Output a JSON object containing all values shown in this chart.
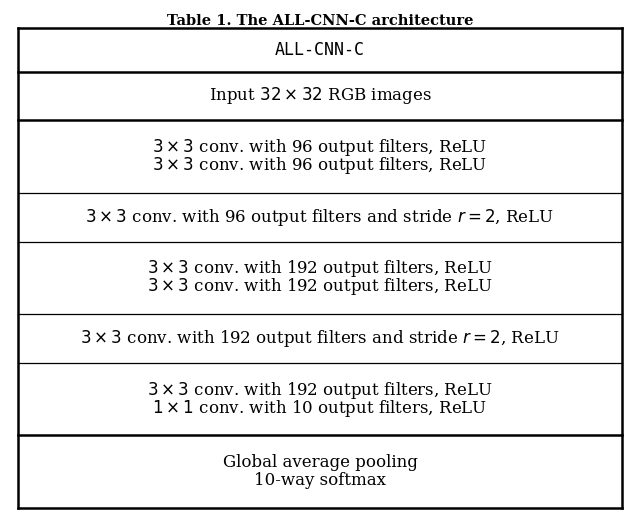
{
  "title": "Table 1. The ALL-CNN-C architecture",
  "title_fontsize": 10.5,
  "header": "ALL-CNN-C",
  "header_fontsize": 12,
  "rows": [
    {
      "lines": [
        "Input $32 \\times 32$ RGB images"
      ],
      "thick_top": true,
      "fontsize": 12
    },
    {
      "lines": [
        "$3 \\times 3$ conv. with 96 output filters, ReLU",
        "$3 \\times 3$ conv. with 96 output filters, ReLU"
      ],
      "thick_top": true,
      "fontsize": 12
    },
    {
      "lines": [
        "$3 \\times 3$ conv. with 96 output filters and stride $r = 2$, ReLU"
      ],
      "thick_top": false,
      "fontsize": 12
    },
    {
      "lines": [
        "$3 \\times 3$ conv. with 192 output filters, ReLU",
        "$3 \\times 3$ conv. with 192 output filters, ReLU"
      ],
      "thick_top": false,
      "fontsize": 12
    },
    {
      "lines": [
        "$3 \\times 3$ conv. with 192 output filters and stride $r = 2$, ReLU"
      ],
      "thick_top": false,
      "fontsize": 12
    },
    {
      "lines": [
        "$3 \\times 3$ conv. with 192 output filters, ReLU",
        "$1 \\times 1$ conv. with 10 output filters, ReLU"
      ],
      "thick_top": false,
      "fontsize": 12
    },
    {
      "lines": [
        "Global average pooling",
        "10-way softmax"
      ],
      "thick_top": true,
      "fontsize": 12
    }
  ],
  "bg_color": "#ffffff",
  "text_color": "#000000",
  "line_color": "#000000",
  "fig_width": 6.4,
  "fig_height": 5.16
}
